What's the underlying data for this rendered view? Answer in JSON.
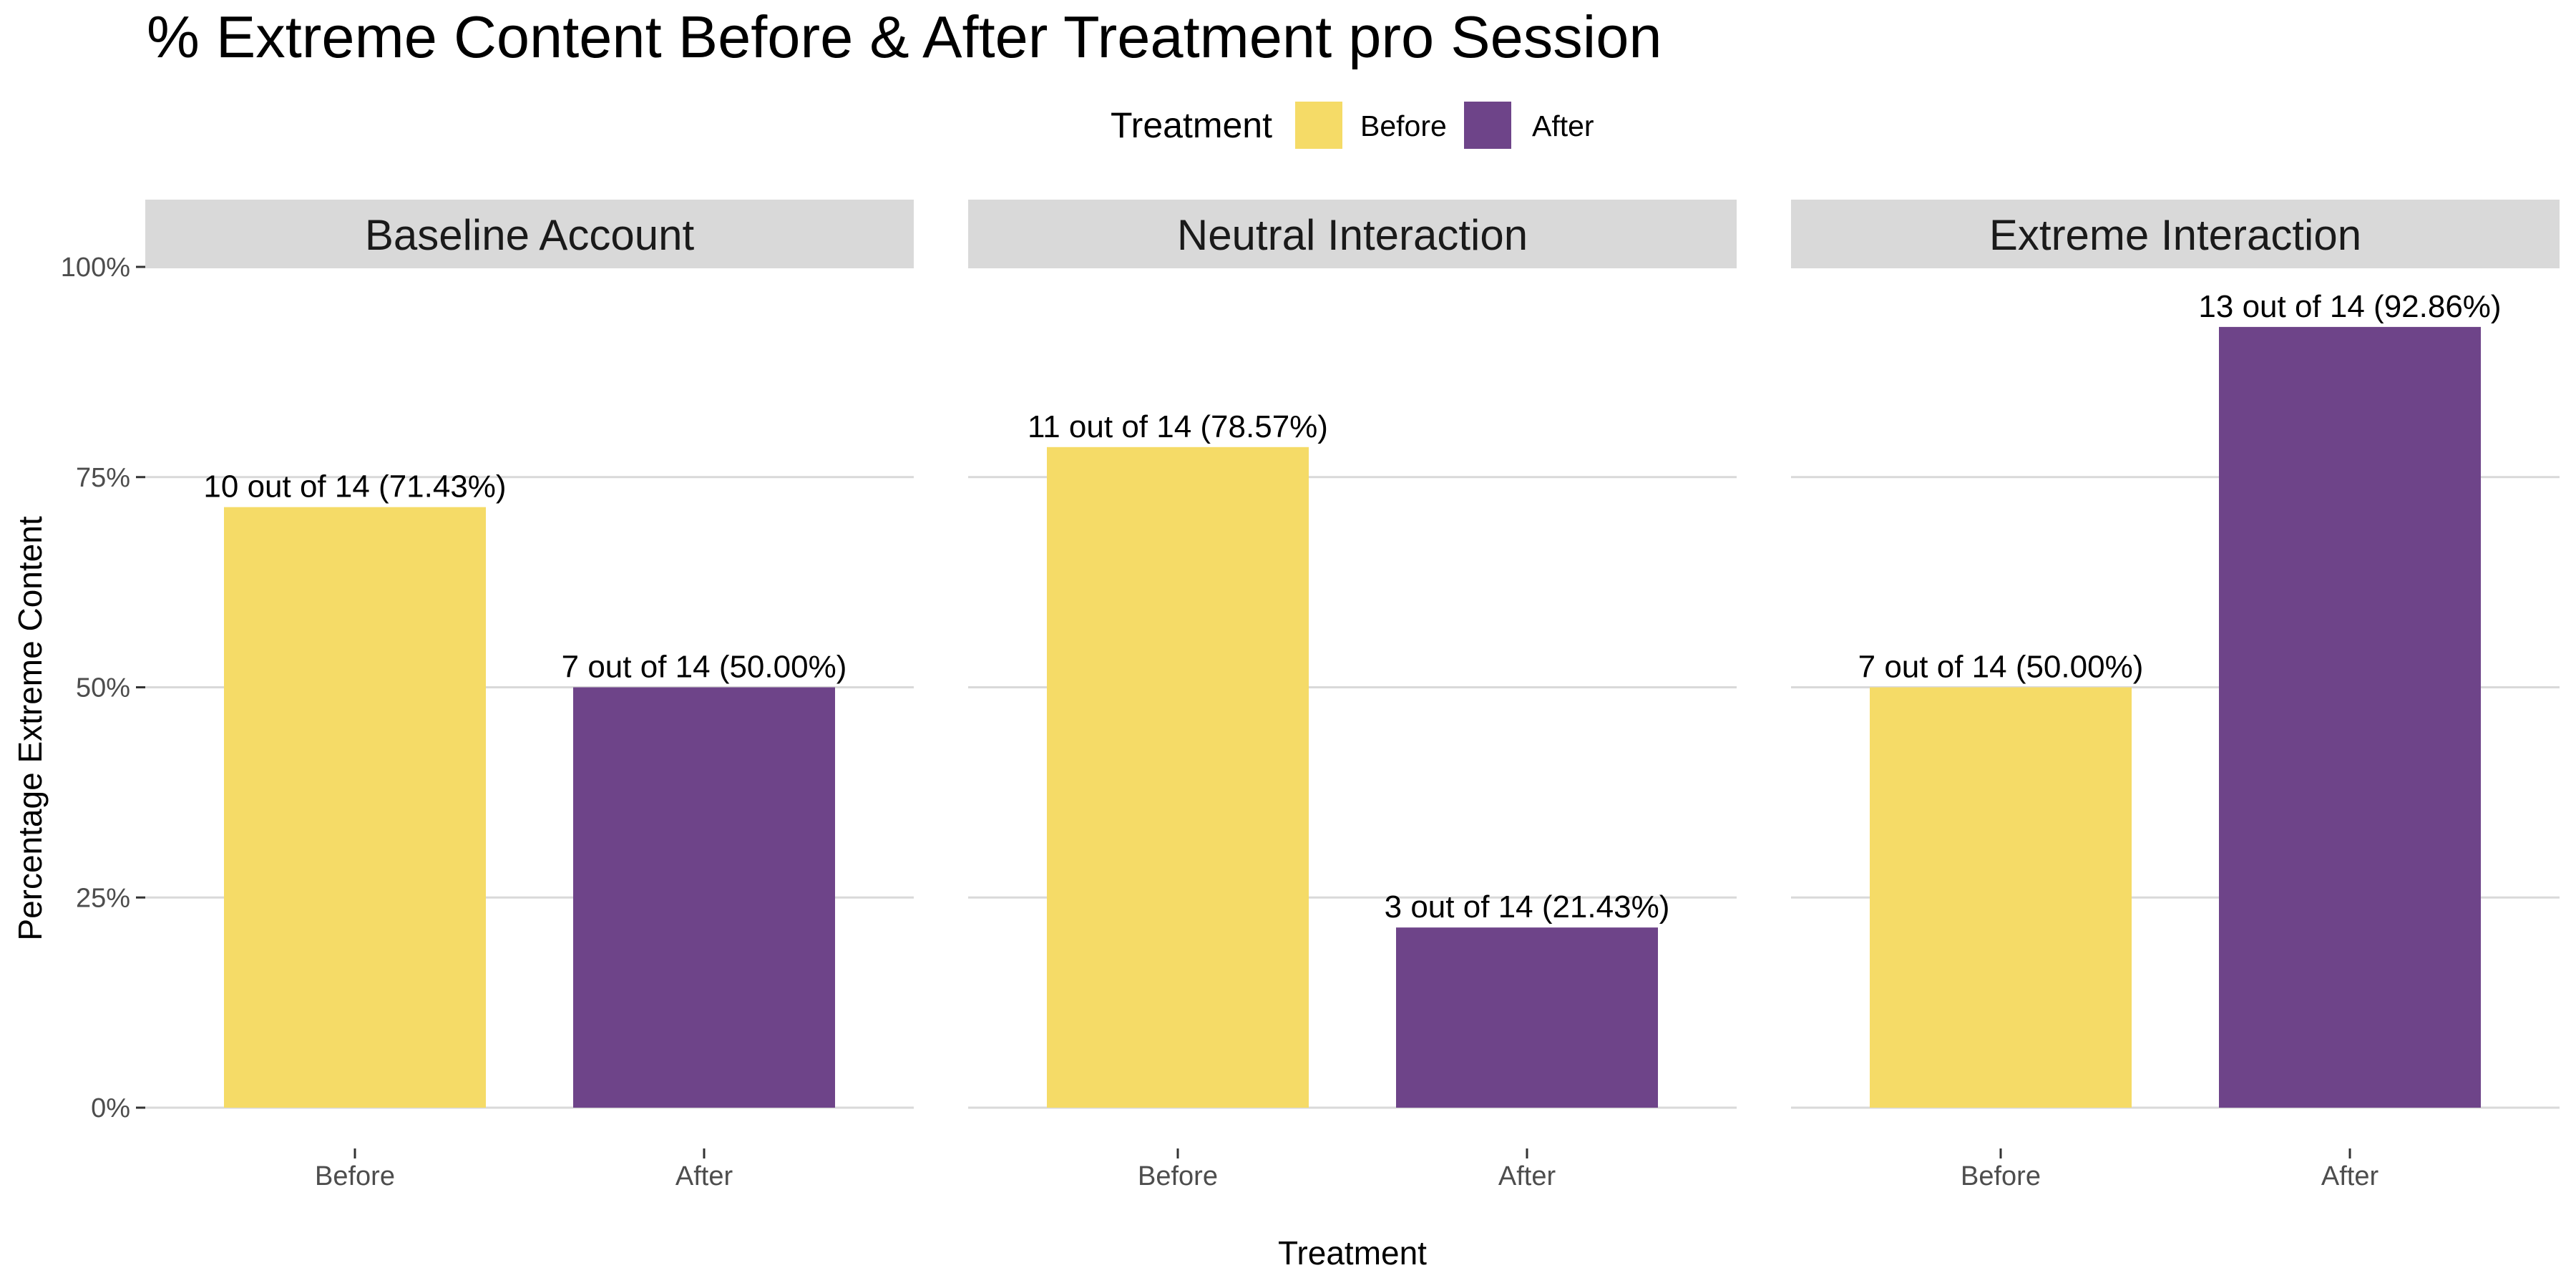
{
  "chart_data": {
    "type": "bar",
    "title": "% Extreme Content Before & After Treatment pro Session",
    "xlabel": "Treatment",
    "ylabel": "Percentage Extreme Content",
    "ylim": [
      0,
      100
    ],
    "y_ticks": [
      0,
      25,
      50,
      75,
      100
    ],
    "y_tick_labels": [
      "0%",
      "25%",
      "50%",
      "75%",
      "100%"
    ],
    "categories": [
      "Before",
      "After"
    ],
    "legend": {
      "title": "Treatment",
      "position": "top",
      "entries": [
        {
          "label": "Before",
          "color": "#F5DB67"
        },
        {
          "label": "After",
          "color": "#6E4489"
        }
      ]
    },
    "grid": true,
    "facets": [
      {
        "name": "Baseline Account",
        "bars": [
          {
            "category": "Before",
            "value": 71.43,
            "label": "10 out of 14 (71.43%)"
          },
          {
            "category": "After",
            "value": 50.0,
            "label": "7 out of 14 (50.00%)"
          }
        ]
      },
      {
        "name": "Neutral Interaction",
        "bars": [
          {
            "category": "Before",
            "value": 78.57,
            "label": "11 out of 14 (78.57%)"
          },
          {
            "category": "After",
            "value": 21.43,
            "label": "3 out of 14 (21.43%)"
          }
        ]
      },
      {
        "name": "Extreme Interaction",
        "bars": [
          {
            "category": "Before",
            "value": 50.0,
            "label": "7 out of 14 (50.00%)"
          },
          {
            "category": "After",
            "value": 92.86,
            "label": "13 out of 14 (92.86%)"
          }
        ]
      }
    ]
  }
}
